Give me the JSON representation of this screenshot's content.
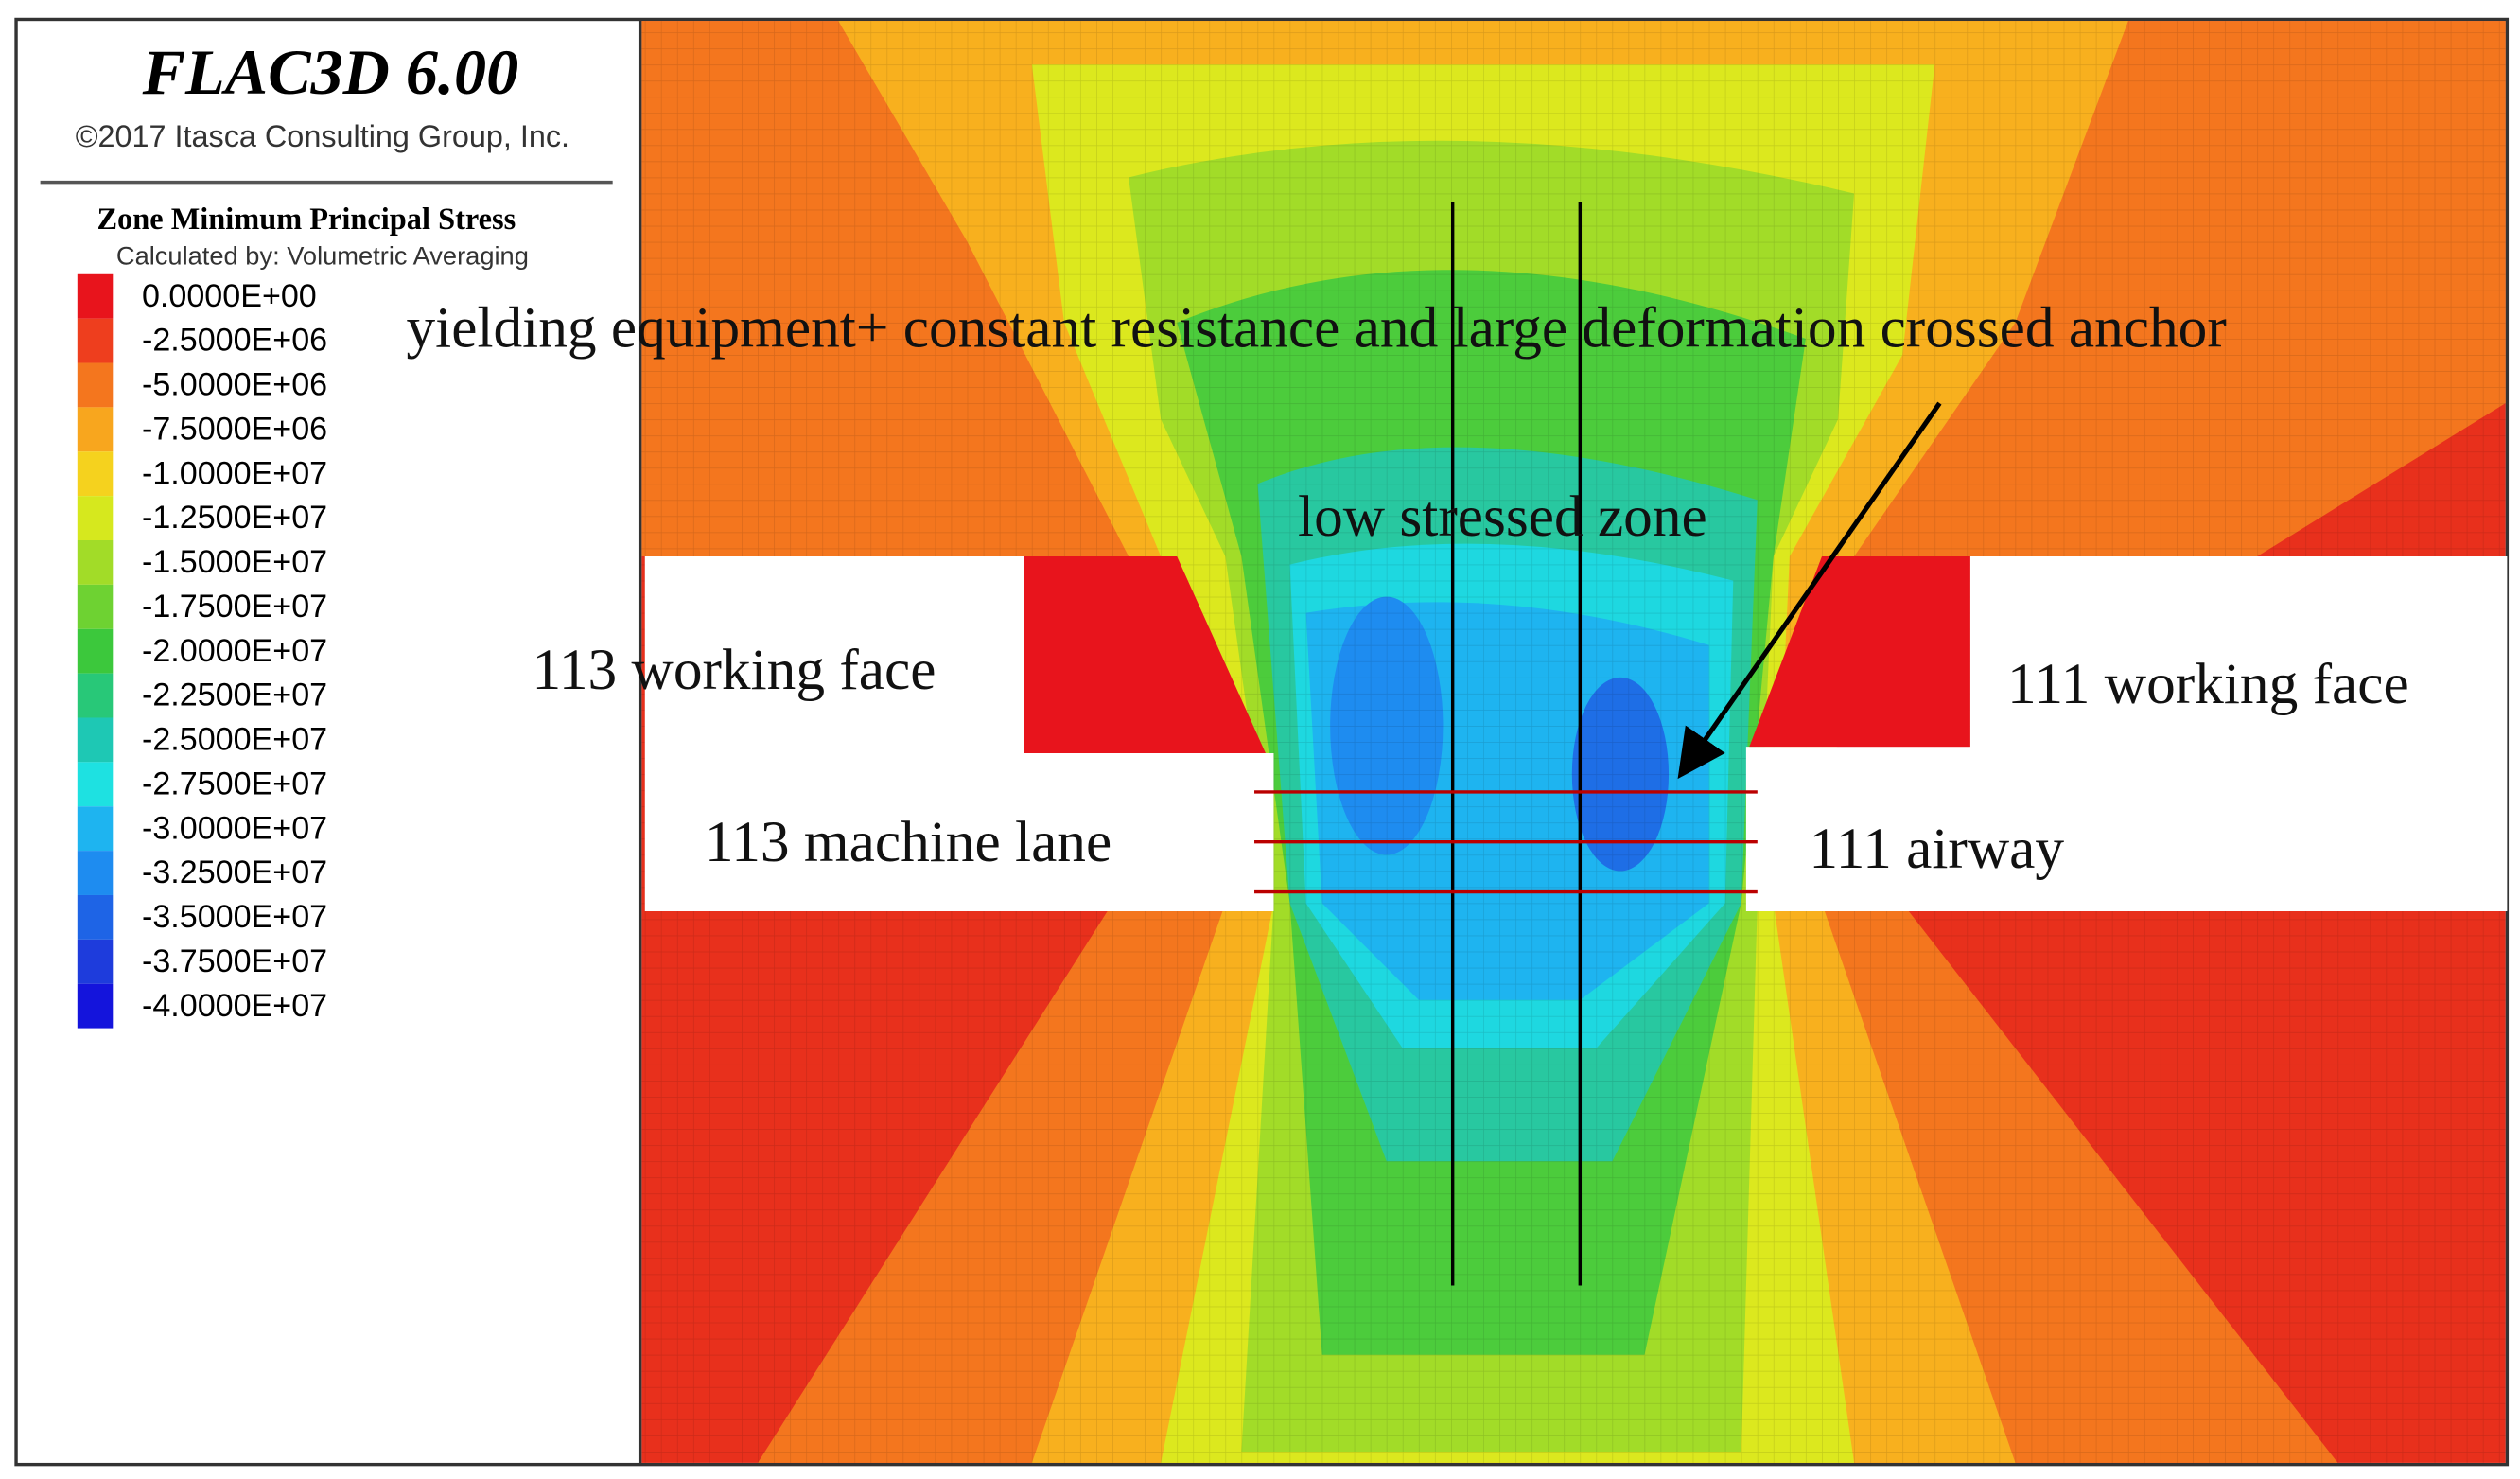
{
  "header": {
    "title": "FLAC3D 6.00",
    "copyright": "©2017 Itasca Consulting Group, Inc."
  },
  "legend": {
    "title": "Zone Minimum Principal Stress",
    "subtitle": "Calculated by: Volumetric Averaging",
    "items": [
      {
        "label": "0.0000E+00",
        "color": "#e8141c"
      },
      {
        "label": "-2.5000E+06",
        "color": "#ee3e1e"
      },
      {
        "label": "-5.0000E+06",
        "color": "#f4761e"
      },
      {
        "label": "-7.5000E+06",
        "color": "#f8a61e"
      },
      {
        "label": "-1.0000E+07",
        "color": "#f5d21e"
      },
      {
        "label": "-1.2500E+07",
        "color": "#d6e81e"
      },
      {
        "label": "-1.5000E+07",
        "color": "#a2dc28"
      },
      {
        "label": "-1.7500E+07",
        "color": "#6ed232"
      },
      {
        "label": "-2.0000E+07",
        "color": "#3cc83c"
      },
      {
        "label": "-2.2500E+07",
        "color": "#28c878"
      },
      {
        "label": "-2.5000E+07",
        "color": "#1ec8b4"
      },
      {
        "label": "-2.7500E+07",
        "color": "#1ee1e1"
      },
      {
        "label": "-3.0000E+07",
        "color": "#1eb4f0"
      },
      {
        "label": "-3.2500E+07",
        "color": "#1e8cf0"
      },
      {
        "label": "-3.5000E+07",
        "color": "#1e64e6"
      },
      {
        "label": "-3.7500E+07",
        "color": "#1e3cdc"
      },
      {
        "label": "-4.0000E+07",
        "color": "#1414dc"
      }
    ]
  },
  "annotations": {
    "anchor": "yielding equipment+ constant resistance and large deformation crossed anchor",
    "low_stress": "low stressed zone",
    "face_113": "113 working face",
    "face_111": "111 working face",
    "lane_113": "113 machine lane",
    "airway_111": "111 airway"
  }
}
